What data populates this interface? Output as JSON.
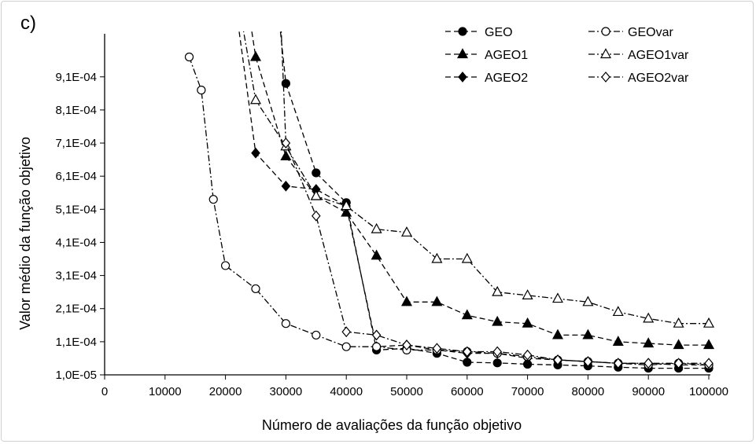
{
  "chart_data": {
    "type": "line",
    "panel_label": "c)",
    "xlabel": "Número de avaliações da função objetivo",
    "ylabel": "Valor médio da função objetivo",
    "xlim": [
      0,
      100000
    ],
    "ylim": [
      1e-05,
      0.00104
    ],
    "x_ticks": [
      0,
      10000,
      20000,
      30000,
      40000,
      50000,
      60000,
      70000,
      80000,
      90000,
      100000
    ],
    "x_tick_labels": [
      "0",
      "10000",
      "20000",
      "30000",
      "40000",
      "50000",
      "60000",
      "70000",
      "80000",
      "90000",
      "100000"
    ],
    "y_ticks": [
      1e-05,
      0.00011,
      0.00021,
      0.00031,
      0.00041,
      0.00051,
      0.00061,
      0.00071,
      0.00081,
      0.00091
    ],
    "y_tick_labels": [
      "1,0E-05",
      "1,1E-04",
      "2,1E-04",
      "3,1E-04",
      "4,1E-04",
      "5,1E-04",
      "6,1E-04",
      "7,1E-04",
      "8,1E-04",
      "9,1E-04"
    ],
    "grid": false,
    "legend_position": "top-right",
    "series": [
      {
        "name": "GEO",
        "marker": "circle-filled",
        "dash": "dash",
        "x": [
          28500,
          30000,
          35000,
          40000,
          45000,
          50000,
          55000,
          60000,
          65000,
          70000,
          75000,
          80000,
          85000,
          90000,
          95000,
          100000
        ],
        "y": [
          0.00115,
          0.00089,
          0.00062,
          0.00053,
          8.5e-05,
          9e-05,
          7.5e-05,
          4.8e-05,
          4.6e-05,
          4.2e-05,
          4e-05,
          3.7e-05,
          3.3e-05,
          3e-05,
          3e-05,
          3e-05
        ]
      },
      {
        "name": "AGEO1",
        "marker": "triangle-filled",
        "dash": "dash",
        "x": [
          23500,
          25000,
          30000,
          35000,
          40000,
          45000,
          50000,
          55000,
          60000,
          65000,
          70000,
          75000,
          80000,
          85000,
          90000,
          95000,
          100000
        ],
        "y": [
          0.00115,
          0.00097,
          0.00067,
          0.00055,
          0.0005,
          0.00037,
          0.00023,
          0.00023,
          0.00019,
          0.00017,
          0.000165,
          0.00013,
          0.00013,
          0.00011,
          0.000105,
          0.0001,
          0.0001
        ]
      },
      {
        "name": "AGEO2",
        "marker": "diamond-filled",
        "dash": "dash",
        "x": [
          21500,
          25000,
          30000,
          35000,
          40000,
          45000,
          50000,
          55000,
          60000,
          65000,
          70000,
          75000,
          80000,
          85000,
          90000,
          95000,
          100000
        ],
        "y": [
          0.00115,
          0.00068,
          0.00058,
          0.00057,
          0.00052,
          9.5e-05,
          0.0001,
          8.5e-05,
          7.5e-05,
          7.5e-05,
          6e-05,
          5.5e-05,
          5e-05,
          4.5e-05,
          4.5e-05,
          4e-05,
          4e-05
        ]
      },
      {
        "name": "GEOvar",
        "marker": "circle-open",
        "dash": "dashdot",
        "x": [
          14000,
          16000,
          18000,
          20000,
          25000,
          30000,
          35000,
          40000,
          45000,
          50000,
          55000,
          60000,
          65000,
          70000,
          75000,
          80000,
          85000,
          90000,
          95000,
          100000
        ],
        "y": [
          0.00097,
          0.00087,
          0.00054,
          0.00034,
          0.00027,
          0.000165,
          0.00013,
          9.5e-05,
          9.5e-05,
          8.5e-05,
          8.5e-05,
          8e-05,
          7.5e-05,
          6.5e-05,
          5.5e-05,
          5e-05,
          4.5e-05,
          4e-05,
          4.5e-05,
          4e-05
        ]
      },
      {
        "name": "AGEO1var",
        "marker": "triangle-open",
        "dash": "dashdot",
        "x": [
          22000,
          25000,
          30000,
          35000,
          40000,
          45000,
          50000,
          55000,
          60000,
          65000,
          70000,
          75000,
          80000,
          85000,
          90000,
          95000,
          100000
        ],
        "y": [
          0.00115,
          0.00084,
          0.0007,
          0.00055,
          0.00052,
          0.00045,
          0.00044,
          0.00036,
          0.00036,
          0.00026,
          0.00025,
          0.00024,
          0.00023,
          0.0002,
          0.00018,
          0.000165,
          0.000165
        ]
      },
      {
        "name": "AGEO2var",
        "marker": "diamond-open",
        "dash": "dashdot",
        "x": [
          29000,
          30000,
          35000,
          40000,
          45000,
          50000,
          55000,
          60000,
          65000,
          70000,
          75000,
          80000,
          85000,
          90000,
          95000,
          100000
        ],
        "y": [
          0.00115,
          0.00071,
          0.00049,
          0.00014,
          0.00013,
          0.0001,
          9e-05,
          8e-05,
          8e-05,
          7e-05,
          5.5e-05,
          5e-05,
          4.5e-05,
          4.5e-05,
          4.5e-05,
          4.5e-05
        ]
      }
    ]
  }
}
